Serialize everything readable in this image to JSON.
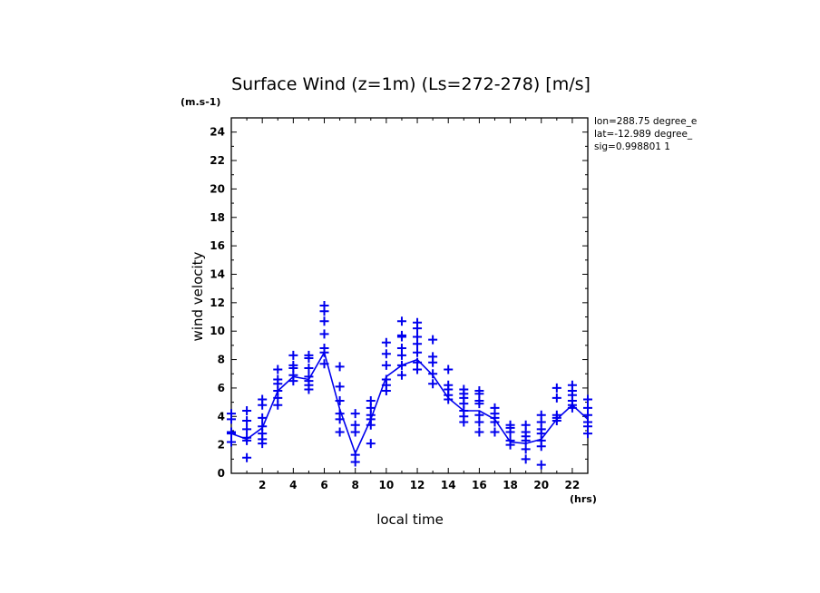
{
  "chart_data": {
    "type": "scatter",
    "title": "Surface Wind (z=1m) (Ls=272-278) [m/s]",
    "yunit": "(m.s-1)",
    "xunit": "(hrs)",
    "xlabel": "local time",
    "ylabel": "wind velocity",
    "xlim": [
      0,
      23
    ],
    "ylim": [
      0,
      25
    ],
    "xticks": [
      2,
      4,
      6,
      8,
      10,
      12,
      14,
      16,
      18,
      20,
      22
    ],
    "yticks": [
      0,
      2,
      4,
      6,
      8,
      10,
      12,
      14,
      16,
      18,
      20,
      22,
      24
    ],
    "annotations": [
      "lon=288.75 degree_e",
      "lat=-12.989 degree_",
      "sig=0.998801 1"
    ],
    "color": "#0000ee",
    "grid": false,
    "series": [
      {
        "type": "line",
        "x": [
          0,
          1,
          2,
          3,
          4,
          5,
          6,
          7,
          8,
          9,
          10,
          11,
          12,
          13,
          14,
          15,
          16,
          17,
          18,
          19,
          20,
          21,
          22,
          23
        ],
        "values": [
          2.8,
          2.4,
          3.2,
          5.8,
          6.8,
          6.6,
          8.5,
          4.5,
          1.4,
          3.8,
          6.8,
          7.6,
          8.0,
          6.9,
          5.3,
          4.4,
          4.4,
          3.8,
          2.2,
          2.1,
          2.4,
          3.8,
          4.8,
          3.8
        ]
      },
      {
        "type": "scatter",
        "marker": "+",
        "points": [
          [
            0,
            4.2
          ],
          [
            0,
            3.8
          ],
          [
            0,
            2.9
          ],
          [
            0,
            2.8
          ],
          [
            0,
            2.2
          ],
          [
            1,
            4.4
          ],
          [
            1,
            3.7
          ],
          [
            1,
            3.1
          ],
          [
            1,
            2.5
          ],
          [
            1,
            2.3
          ],
          [
            1,
            1.1
          ],
          [
            2,
            5.2
          ],
          [
            2,
            4.8
          ],
          [
            2,
            3.9
          ],
          [
            2,
            3.3
          ],
          [
            2,
            2.8
          ],
          [
            2,
            2.4
          ],
          [
            2,
            2.1
          ],
          [
            3,
            7.3
          ],
          [
            3,
            6.6
          ],
          [
            3,
            6.3
          ],
          [
            3,
            5.8
          ],
          [
            3,
            5.3
          ],
          [
            3,
            4.8
          ],
          [
            4,
            8.3
          ],
          [
            4,
            7.6
          ],
          [
            4,
            7.4
          ],
          [
            4,
            6.9
          ],
          [
            4,
            6.5
          ],
          [
            5,
            8.3
          ],
          [
            5,
            8.1
          ],
          [
            5,
            7.4
          ],
          [
            5,
            6.8
          ],
          [
            5,
            6.5
          ],
          [
            5,
            6.2
          ],
          [
            5,
            5.9
          ],
          [
            6,
            11.8
          ],
          [
            6,
            11.4
          ],
          [
            6,
            10.7
          ],
          [
            6,
            9.8
          ],
          [
            6,
            8.8
          ],
          [
            6,
            8.5
          ],
          [
            6,
            7.7
          ],
          [
            7,
            7.5
          ],
          [
            7,
            6.1
          ],
          [
            7,
            5.1
          ],
          [
            7,
            4.2
          ],
          [
            7,
            3.8
          ],
          [
            7,
            2.9
          ],
          [
            8,
            4.2
          ],
          [
            8,
            3.4
          ],
          [
            8,
            2.9
          ],
          [
            8,
            1.3
          ],
          [
            8,
            0.8
          ],
          [
            9,
            5.1
          ],
          [
            9,
            4.6
          ],
          [
            9,
            4.1
          ],
          [
            9,
            3.8
          ],
          [
            9,
            3.4
          ],
          [
            9,
            2.1
          ],
          [
            10,
            9.2
          ],
          [
            10,
            8.4
          ],
          [
            10,
            7.6
          ],
          [
            10,
            6.6
          ],
          [
            10,
            6.2
          ],
          [
            10,
            5.8
          ],
          [
            11,
            10.7
          ],
          [
            11,
            9.7
          ],
          [
            11,
            9.6
          ],
          [
            11,
            8.8
          ],
          [
            11,
            8.3
          ],
          [
            11,
            7.6
          ],
          [
            11,
            6.9
          ],
          [
            12,
            10.6
          ],
          [
            12,
            10.2
          ],
          [
            12,
            9.6
          ],
          [
            12,
            9.1
          ],
          [
            12,
            8.5
          ],
          [
            12,
            7.8
          ],
          [
            12,
            7.3
          ],
          [
            13,
            9.4
          ],
          [
            13,
            8.2
          ],
          [
            13,
            7.8
          ],
          [
            13,
            7.0
          ],
          [
            13,
            6.3
          ],
          [
            14,
            7.3
          ],
          [
            14,
            6.2
          ],
          [
            14,
            5.9
          ],
          [
            14,
            5.5
          ],
          [
            14,
            5.2
          ],
          [
            15,
            5.9
          ],
          [
            15,
            5.6
          ],
          [
            15,
            5.3
          ],
          [
            15,
            4.9
          ],
          [
            15,
            4.4
          ],
          [
            15,
            4.0
          ],
          [
            15,
            3.6
          ],
          [
            16,
            5.8
          ],
          [
            16,
            5.6
          ],
          [
            16,
            5.1
          ],
          [
            16,
            4.9
          ],
          [
            16,
            4.1
          ],
          [
            16,
            3.6
          ],
          [
            16,
            2.9
          ],
          [
            17,
            4.6
          ],
          [
            17,
            4.2
          ],
          [
            17,
            3.9
          ],
          [
            17,
            3.6
          ],
          [
            17,
            2.9
          ],
          [
            18,
            3.4
          ],
          [
            18,
            3.2
          ],
          [
            18,
            2.9
          ],
          [
            18,
            2.3
          ],
          [
            18,
            2.0
          ],
          [
            19,
            3.4
          ],
          [
            19,
            2.9
          ],
          [
            19,
            2.6
          ],
          [
            19,
            2.3
          ],
          [
            19,
            1.7
          ],
          [
            19,
            1.0
          ],
          [
            20,
            4.1
          ],
          [
            20,
            3.6
          ],
          [
            20,
            3.1
          ],
          [
            20,
            2.8
          ],
          [
            20,
            2.3
          ],
          [
            20,
            1.9
          ],
          [
            20,
            0.6
          ],
          [
            21,
            6.0
          ],
          [
            21,
            5.3
          ],
          [
            21,
            4.1
          ],
          [
            21,
            3.9
          ],
          [
            21,
            3.7
          ],
          [
            22,
            6.2
          ],
          [
            22,
            5.8
          ],
          [
            22,
            5.5
          ],
          [
            22,
            5.1
          ],
          [
            22,
            4.8
          ],
          [
            22,
            4.6
          ],
          [
            23,
            5.2
          ],
          [
            23,
            4.6
          ],
          [
            23,
            4.1
          ],
          [
            23,
            3.6
          ],
          [
            23,
            3.3
          ],
          [
            23,
            2.8
          ]
        ]
      }
    ]
  }
}
